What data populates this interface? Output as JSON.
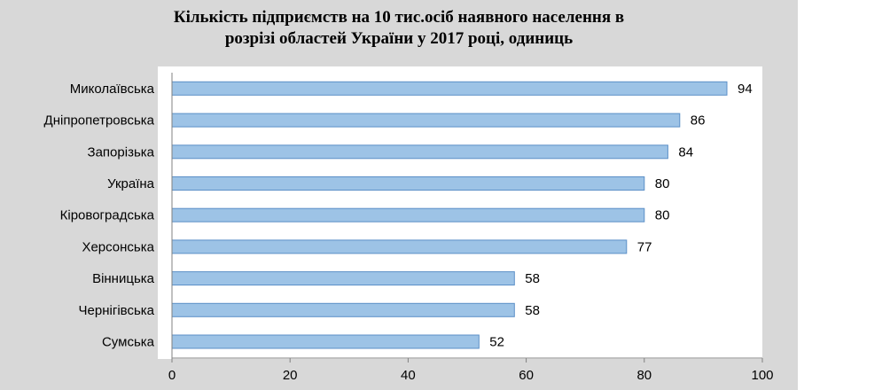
{
  "chart_data": {
    "type": "bar",
    "orientation": "horizontal",
    "title_line1": "Кількість  підприємств на 10 тис.осіб  наявного  населення  в",
    "title_line2": "розрізі областей  України у 2017 році, одиниць",
    "categories": [
      "Миколаївська",
      "Дніпропетровська",
      "Запорізька",
      "Україна",
      "Кіровоградська",
      "Херсонська",
      "Вінницька",
      "Чернігівська",
      "Сумська"
    ],
    "values": [
      94,
      86,
      84,
      80,
      80,
      77,
      58,
      58,
      52
    ],
    "xlim": [
      0,
      100
    ],
    "xticks": [
      0,
      20,
      40,
      60,
      80,
      100
    ],
    "grid": false,
    "legend": "none",
    "bar_color": "#9dc3e6",
    "bar_edge_color": "#5b8fc7",
    "frame_color": "#d8d8d8",
    "plot_bg": "#ffffff"
  }
}
